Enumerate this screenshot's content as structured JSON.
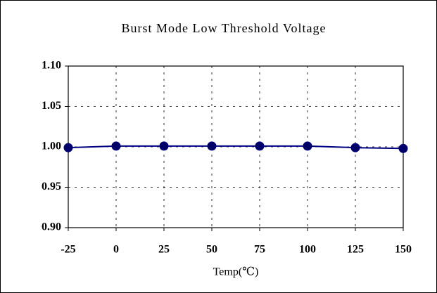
{
  "chart_data": {
    "type": "line",
    "title": "Burst Mode Low Threshold Voltage",
    "xlabel": "Temp(℃)",
    "x": [
      -25,
      0,
      25,
      50,
      75,
      100,
      125,
      150
    ],
    "values": [
      0.999,
      1.001,
      1.001,
      1.001,
      1.001,
      1.001,
      0.999,
      0.998
    ],
    "color": "#000080",
    "marker_color": "#000066",
    "xlim": [
      -25,
      150
    ],
    "xticks": [
      -25,
      0,
      25,
      50,
      75,
      100,
      125,
      150
    ],
    "ylim": [
      0.9,
      1.1
    ],
    "yticks": [
      {
        "value": 0.9,
        "label": "0.90"
      },
      0.95,
      {
        "value": 1.0,
        "label": "1.00"
      },
      1.05,
      {
        "value": 1.1,
        "label": "1.10"
      }
    ],
    "grid": true
  }
}
